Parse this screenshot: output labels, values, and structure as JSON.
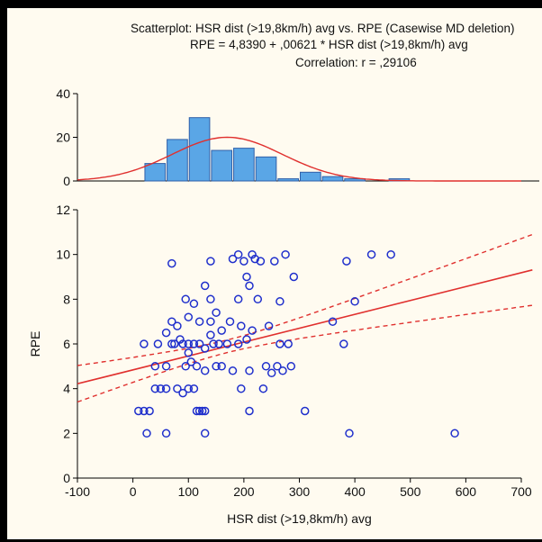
{
  "header": {
    "line1": "Scatterplot: HSR dist (>19,8km/h) avg vs. RPE     (Casewise MD deletion)",
    "line2": "RPE      = 4,8390 + ,00621 * HSR dist (>19,8km/h) avg",
    "line3": "Correlation: r = ,29106"
  },
  "colors": {
    "background": "#FFFBF0",
    "points": "#1F2FCC",
    "fit": "#E0302E",
    "bar_fill": "#5AA6E6",
    "bar_stroke": "#2F5FA8"
  },
  "chart_data": [
    {
      "type": "bar",
      "role": "histogram",
      "xlim": [
        -100,
        700
      ],
      "ylim": [
        0,
        40
      ],
      "yticks": [
        0,
        20,
        40
      ],
      "bin_width": 40,
      "bins": [
        {
          "x0": -20,
          "value": 0
        },
        {
          "x0": 20,
          "value": 8
        },
        {
          "x0": 60,
          "value": 19
        },
        {
          "x0": 100,
          "value": 29
        },
        {
          "x0": 140,
          "value": 14
        },
        {
          "x0": 180,
          "value": 15
        },
        {
          "x0": 220,
          "value": 11
        },
        {
          "x0": 260,
          "value": 1
        },
        {
          "x0": 300,
          "value": 4
        },
        {
          "x0": 340,
          "value": 2
        },
        {
          "x0": 380,
          "value": 1
        },
        {
          "x0": 420,
          "value": 0
        },
        {
          "x0": 460,
          "value": 1
        }
      ],
      "normal_fit": {
        "mean": 170,
        "sd": 100,
        "peak": 20
      }
    },
    {
      "type": "scatter",
      "xlabel": "HSR dist (>19,8km/h) avg",
      "ylabel": "RPE",
      "xlim": [
        -100,
        700
      ],
      "ylim": [
        0,
        12
      ],
      "xticks": [
        -100,
        0,
        100,
        200,
        300,
        400,
        500,
        600,
        700
      ],
      "yticks": [
        0,
        2,
        4,
        6,
        8,
        10,
        12
      ],
      "regression": {
        "intercept": 4.839,
        "slope": 0.00621
      },
      "confidence_band": {
        "n": 120,
        "mean_x": 170,
        "se_intercept_scale": 0.22,
        "ssx": 1200000
      },
      "points": [
        [
          10,
          3
        ],
        [
          20,
          3
        ],
        [
          30,
          3
        ],
        [
          25,
          2
        ],
        [
          60,
          2
        ],
        [
          130,
          2
        ],
        [
          390,
          2
        ],
        [
          580,
          2
        ],
        [
          115,
          3
        ],
        [
          120,
          3
        ],
        [
          125,
          3
        ],
        [
          130,
          3
        ],
        [
          210,
          3
        ],
        [
          310,
          3
        ],
        [
          40,
          4
        ],
        [
          50,
          4
        ],
        [
          60,
          4
        ],
        [
          80,
          4
        ],
        [
          90,
          3.8
        ],
        [
          100,
          4
        ],
        [
          110,
          4
        ],
        [
          195,
          4
        ],
        [
          235,
          4
        ],
        [
          40,
          5
        ],
        [
          60,
          5
        ],
        [
          95,
          5
        ],
        [
          105,
          5.2
        ],
        [
          115,
          5
        ],
        [
          130,
          4.8
        ],
        [
          150,
          5
        ],
        [
          160,
          5
        ],
        [
          180,
          4.8
        ],
        [
          210,
          4.8
        ],
        [
          240,
          5
        ],
        [
          260,
          5
        ],
        [
          285,
          5
        ],
        [
          250,
          4.7
        ],
        [
          270,
          4.8
        ],
        [
          20,
          6
        ],
        [
          45,
          6
        ],
        [
          70,
          6
        ],
        [
          75,
          6
        ],
        [
          90,
          6
        ],
        [
          100,
          6
        ],
        [
          110,
          6
        ],
        [
          120,
          6
        ],
        [
          130,
          5.8
        ],
        [
          145,
          6
        ],
        [
          155,
          6
        ],
        [
          170,
          6
        ],
        [
          190,
          6
        ],
        [
          205,
          6.2
        ],
        [
          265,
          6
        ],
        [
          280,
          6
        ],
        [
          380,
          6
        ],
        [
          60,
          6.5
        ],
        [
          85,
          6.2
        ],
        [
          100,
          5.6
        ],
        [
          140,
          6.4
        ],
        [
          160,
          6.6
        ],
        [
          195,
          6.8
        ],
        [
          215,
          6.6
        ],
        [
          70,
          7
        ],
        [
          80,
          6.8
        ],
        [
          100,
          7.2
        ],
        [
          120,
          7
        ],
        [
          140,
          7
        ],
        [
          150,
          7.4
        ],
        [
          175,
          7
        ],
        [
          245,
          6.8
        ],
        [
          360,
          7
        ],
        [
          95,
          8
        ],
        [
          110,
          7.8
        ],
        [
          130,
          8.6
        ],
        [
          140,
          8
        ],
        [
          190,
          8
        ],
        [
          210,
          8.6
        ],
        [
          225,
          8
        ],
        [
          265,
          7.9
        ],
        [
          290,
          9
        ],
        [
          400,
          7.9
        ],
        [
          70,
          9.6
        ],
        [
          140,
          9.7
        ],
        [
          180,
          9.8
        ],
        [
          190,
          10
        ],
        [
          200,
          9.7
        ],
        [
          205,
          9
        ],
        [
          215,
          10
        ],
        [
          220,
          9.8
        ],
        [
          230,
          9.7
        ],
        [
          255,
          9.7
        ],
        [
          275,
          10
        ],
        [
          385,
          9.7
        ],
        [
          430,
          10
        ],
        [
          465,
          10
        ]
      ]
    }
  ]
}
